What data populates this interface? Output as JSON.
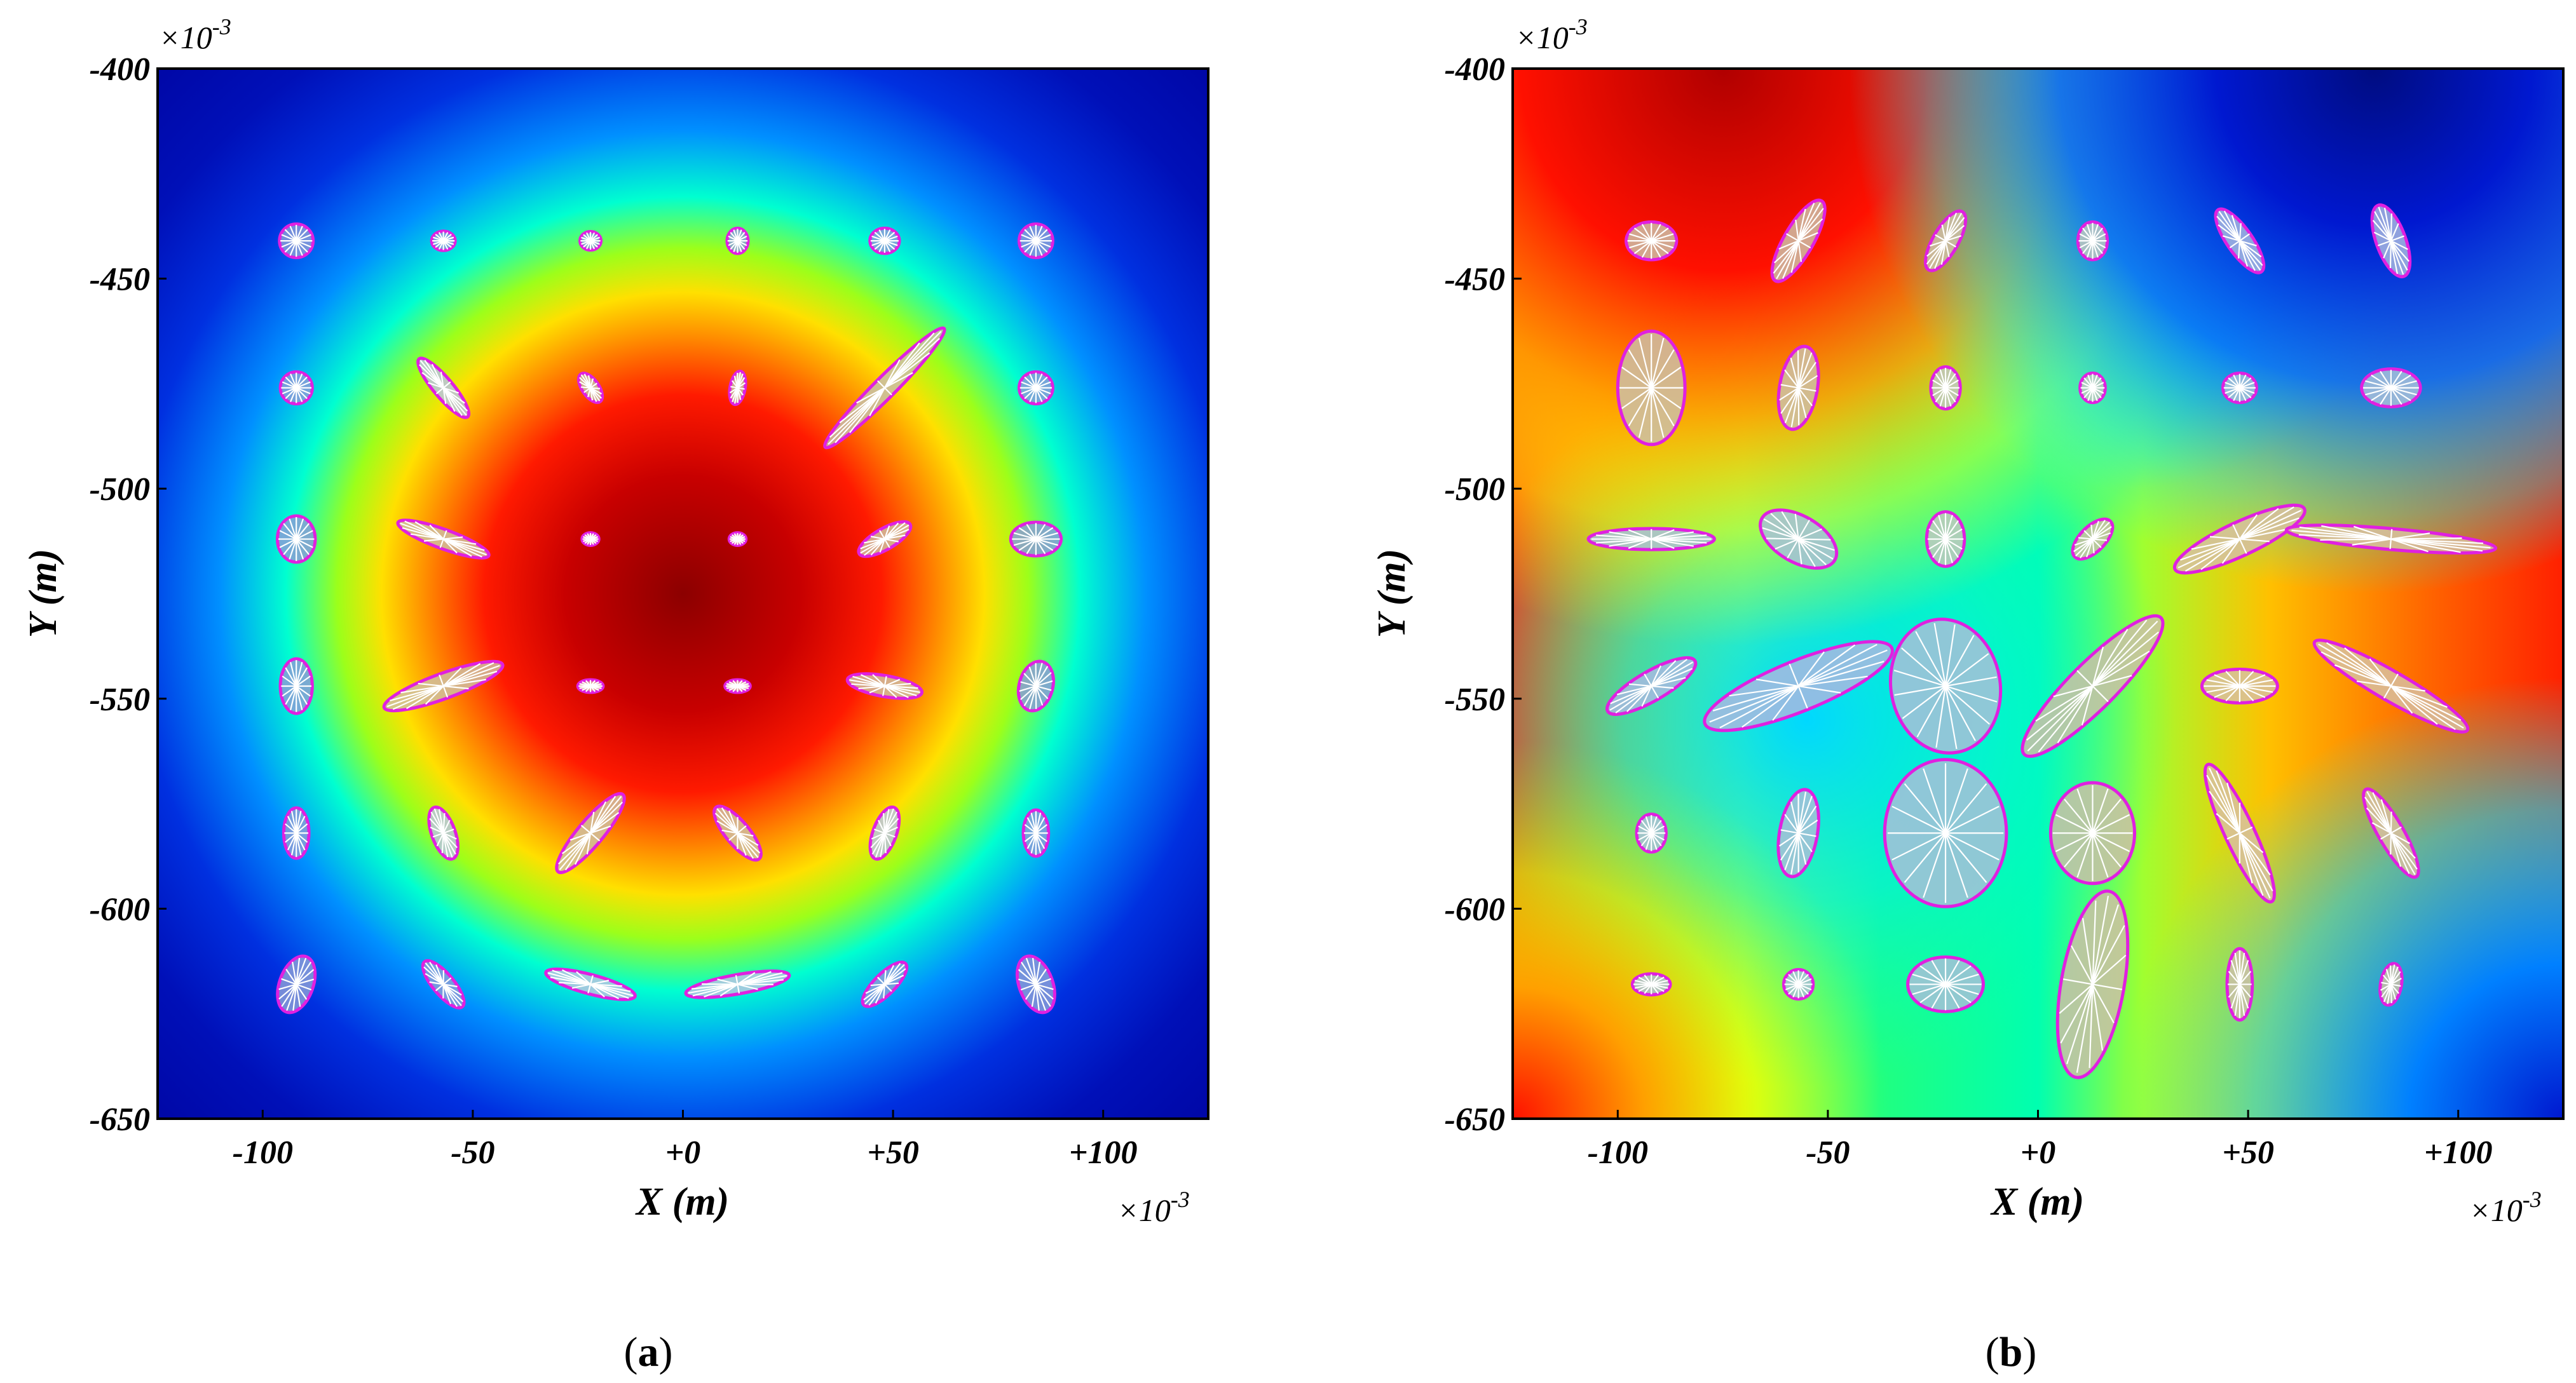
{
  "chart_data": [
    {
      "type": "heatmap",
      "panel_label": "a",
      "xlabel": "X (m)",
      "ylabel": "Y (m)",
      "multiplier": "×10",
      "multiplier_exp": "-3",
      "x_ticks": [
        "-100",
        "-50",
        "+0",
        "+50",
        "+100"
      ],
      "y_ticks": [
        "-400",
        "-450",
        "-500",
        "-550",
        "-600",
        "-650"
      ],
      "x_tick_values": [
        -100,
        -50,
        0,
        50,
        100
      ],
      "y_tick_values": [
        -400,
        -450,
        -500,
        -550,
        -600,
        -650
      ],
      "xlim": [
        -125,
        125
      ],
      "ylim": [
        -650,
        -400
      ],
      "field": {
        "pattern": "radial",
        "center": [
          0,
          -530
        ],
        "radius": 115
      },
      "ellipses": [
        {
          "x": -92,
          "y": -441,
          "rx": 4,
          "ry": 4,
          "angle": 0,
          "fill": "#8a9cd8"
        },
        {
          "x": -57,
          "y": -441,
          "rx": 2.8,
          "ry": 2.3,
          "angle": 0,
          "fill": "#8a9cd8"
        },
        {
          "x": -22,
          "y": -441,
          "rx": 2.5,
          "ry": 2.2,
          "angle": 0,
          "fill": "#8a9cd8"
        },
        {
          "x": 13,
          "y": -441,
          "rx": 2.5,
          "ry": 3,
          "angle": 0,
          "fill": "#8a9cd8"
        },
        {
          "x": 48,
          "y": -441,
          "rx": 3.5,
          "ry": 3,
          "angle": 0,
          "fill": "#8a9cd8"
        },
        {
          "x": 84,
          "y": -441,
          "rx": 4,
          "ry": 4,
          "angle": 0,
          "fill": "#8a9cd8"
        },
        {
          "x": -92,
          "y": -476,
          "rx": 3.8,
          "ry": 3.8,
          "angle": 0,
          "fill": "#8a9cd8"
        },
        {
          "x": -57,
          "y": -476,
          "rx": 9,
          "ry": 2.3,
          "angle": -50,
          "fill": "#b8c4e0"
        },
        {
          "x": -22,
          "y": -476,
          "rx": 4,
          "ry": 2,
          "angle": -55,
          "fill": "#c8c0a8"
        },
        {
          "x": 13,
          "y": -476,
          "rx": 4,
          "ry": 1.8,
          "angle": 80,
          "fill": "#c8c0a8"
        },
        {
          "x": 48,
          "y": -476,
          "rx": 20,
          "ry": 2.5,
          "angle": 45,
          "fill": "#c8c0a8"
        },
        {
          "x": 84,
          "y": -476,
          "rx": 4,
          "ry": 3.8,
          "angle": 0,
          "fill": "#8a9cd8"
        },
        {
          "x": -92,
          "y": -512,
          "rx": 4.5,
          "ry": 5.5,
          "angle": 0,
          "fill": "#8a9cd8"
        },
        {
          "x": -57,
          "y": -512,
          "rx": 11.5,
          "ry": 2.3,
          "angle": -20,
          "fill": "#d0c0a0"
        },
        {
          "x": -22,
          "y": -512,
          "rx": 2,
          "ry": 1.5,
          "angle": 0,
          "fill": "#e0b0b0"
        },
        {
          "x": 13,
          "y": -512,
          "rx": 2,
          "ry": 1.5,
          "angle": 0,
          "fill": "#e0b0b0"
        },
        {
          "x": 48,
          "y": -512,
          "rx": 7,
          "ry": 2.5,
          "angle": 30,
          "fill": "#d0c0a0"
        },
        {
          "x": 84,
          "y": -512,
          "rx": 6,
          "ry": 4,
          "angle": 0,
          "fill": "#8a9cd8"
        },
        {
          "x": -92,
          "y": -547,
          "rx": 3.8,
          "ry": 6.5,
          "angle": 0,
          "fill": "#8a9cd8"
        },
        {
          "x": -57,
          "y": -547,
          "rx": 15,
          "ry": 3,
          "angle": 20,
          "fill": "#d0c0a0"
        },
        {
          "x": -22,
          "y": -547,
          "rx": 3,
          "ry": 1.5,
          "angle": 0,
          "fill": "#e0b0b0"
        },
        {
          "x": 13,
          "y": -547,
          "rx": 3,
          "ry": 1.5,
          "angle": 0,
          "fill": "#e0b0b0"
        },
        {
          "x": 48,
          "y": -547,
          "rx": 9,
          "ry": 2.5,
          "angle": -10,
          "fill": "#d0c0a0"
        },
        {
          "x": 84,
          "y": -547,
          "rx": 4,
          "ry": 6,
          "angle": -15,
          "fill": "#8a9cd8"
        },
        {
          "x": -92,
          "y": -582,
          "rx": 3,
          "ry": 6,
          "angle": 0,
          "fill": "#8a9cd8"
        },
        {
          "x": -57,
          "y": -582,
          "rx": 2.8,
          "ry": 6.5,
          "angle": 20,
          "fill": "#b8c4e0"
        },
        {
          "x": -22,
          "y": -582,
          "rx": 12,
          "ry": 3,
          "angle": 50,
          "fill": "#d0c0a0"
        },
        {
          "x": 13,
          "y": -582,
          "rx": 8,
          "ry": 2.8,
          "angle": -50,
          "fill": "#d0c0a0"
        },
        {
          "x": 48,
          "y": -582,
          "rx": 2.8,
          "ry": 6.5,
          "angle": -20,
          "fill": "#b8c4e0"
        },
        {
          "x": 84,
          "y": -582,
          "rx": 3,
          "ry": 5.5,
          "angle": 0,
          "fill": "#8a9cd8"
        },
        {
          "x": -92,
          "y": -618,
          "rx": 4,
          "ry": 7,
          "angle": -20,
          "fill": "#8a9cd8"
        },
        {
          "x": -57,
          "y": -618,
          "rx": 7,
          "ry": 2.5,
          "angle": -50,
          "fill": "#8a9cd8"
        },
        {
          "x": -22,
          "y": -618,
          "rx": 11,
          "ry": 2.3,
          "angle": -15,
          "fill": "#b8c4e0"
        },
        {
          "x": 13,
          "y": -618,
          "rx": 12.5,
          "ry": 2.3,
          "angle": 10,
          "fill": "#b8c4e0"
        },
        {
          "x": 48,
          "y": -618,
          "rx": 7,
          "ry": 2.5,
          "angle": 45,
          "fill": "#8a9cd8"
        },
        {
          "x": 84,
          "y": -618,
          "rx": 4,
          "ry": 7,
          "angle": 20,
          "fill": "#8a9cd8"
        }
      ]
    },
    {
      "type": "heatmap",
      "panel_label": "b",
      "xlabel": "X (m)",
      "ylabel": "Y (m)",
      "multiplier": "×10",
      "multiplier_exp": "-3",
      "x_ticks": [
        "-100",
        "-50",
        "+0",
        "+50",
        "+100"
      ],
      "y_ticks": [
        "-400",
        "-450",
        "-500",
        "-550",
        "-600",
        "-650"
      ],
      "x_tick_values": [
        -100,
        -50,
        0,
        50,
        100
      ],
      "y_tick_values": [
        -400,
        -450,
        -500,
        -550,
        -600,
        -650
      ],
      "xlim": [
        -125,
        125
      ],
      "ylim": [
        -650,
        -400
      ],
      "field": {
        "pattern": "saddle"
      },
      "ellipses": [
        {
          "x": -92,
          "y": -441,
          "rx": 6,
          "ry": 4.5,
          "angle": 0,
          "fill": "#cdbfa6"
        },
        {
          "x": -57,
          "y": -441,
          "rx": 11,
          "ry": 3.5,
          "angle": 60,
          "fill": "#cdbfa6"
        },
        {
          "x": -22,
          "y": -441,
          "rx": 8,
          "ry": 3,
          "angle": 60,
          "fill": "#cdbfa6"
        },
        {
          "x": 13,
          "y": -441,
          "rx": 3.5,
          "ry": 4.5,
          "angle": 0,
          "fill": "#c0c8c0"
        },
        {
          "x": 48,
          "y": -441,
          "rx": 9,
          "ry": 3,
          "angle": -55,
          "fill": "#a8b8e0"
        },
        {
          "x": 84,
          "y": -441,
          "rx": 9,
          "ry": 3.5,
          "angle": -70,
          "fill": "#a8b8e0"
        },
        {
          "x": -92,
          "y": -476,
          "rx": 8,
          "ry": 13.5,
          "angle": 0,
          "fill": "#cdbfa6"
        },
        {
          "x": -57,
          "y": -476,
          "rx": 4.5,
          "ry": 10,
          "angle": -10,
          "fill": "#cdbfa6"
        },
        {
          "x": -22,
          "y": -476,
          "rx": 3.5,
          "ry": 5,
          "angle": 0,
          "fill": "#c0c8c0"
        },
        {
          "x": 13,
          "y": -476,
          "rx": 3,
          "ry": 3.5,
          "angle": 0,
          "fill": "#c0c8c0"
        },
        {
          "x": 48,
          "y": -476,
          "rx": 4,
          "ry": 3.5,
          "angle": 0,
          "fill": "#a8c0d8"
        },
        {
          "x": 84,
          "y": -476,
          "rx": 7,
          "ry": 4.5,
          "angle": 0,
          "fill": "#a8c0d8"
        },
        {
          "x": -92,
          "y": -512,
          "rx": 15,
          "ry": 2.5,
          "angle": 0,
          "fill": "#a8c0d8"
        },
        {
          "x": -57,
          "y": -512,
          "rx": 10,
          "ry": 5.5,
          "angle": -30,
          "fill": "#a8c0d8"
        },
        {
          "x": -22,
          "y": -512,
          "rx": 4.5,
          "ry": 6.5,
          "angle": 0,
          "fill": "#c0c8c0"
        },
        {
          "x": 13,
          "y": -512,
          "rx": 6,
          "ry": 3,
          "angle": 45,
          "fill": "#cdbfa6"
        },
        {
          "x": 48,
          "y": -512,
          "rx": 17,
          "ry": 4,
          "angle": 25,
          "fill": "#d8c0a0"
        },
        {
          "x": 84,
          "y": -512,
          "rx": 25,
          "ry": 2.5,
          "angle": -5,
          "fill": "#d8c0a0"
        },
        {
          "x": -92,
          "y": -547,
          "rx": 12,
          "ry": 3.5,
          "angle": 30,
          "fill": "#a8b8e0"
        },
        {
          "x": -57,
          "y": -547,
          "rx": 24,
          "ry": 6,
          "angle": 22,
          "fill": "#a8b8e0"
        },
        {
          "x": -22,
          "y": -547,
          "rx": 13,
          "ry": 16,
          "angle": 10,
          "fill": "#a8c0d8"
        },
        {
          "x": 13,
          "y": -547,
          "rx": 23,
          "ry": 5.5,
          "angle": 45,
          "fill": "#cdbfa6"
        },
        {
          "x": 48,
          "y": -547,
          "rx": 9,
          "ry": 4,
          "angle": 0,
          "fill": "#d8c0a0"
        },
        {
          "x": 84,
          "y": -547,
          "rx": 21,
          "ry": 3.5,
          "angle": -30,
          "fill": "#d8c0a0"
        },
        {
          "x": -92,
          "y": -582,
          "rx": 3.5,
          "ry": 4.5,
          "angle": 0,
          "fill": "#a8c0d8"
        },
        {
          "x": -57,
          "y": -582,
          "rx": 4.5,
          "ry": 10.5,
          "angle": -10,
          "fill": "#a8c0d8"
        },
        {
          "x": -22,
          "y": -582,
          "rx": 14.5,
          "ry": 17.5,
          "angle": 0,
          "fill": "#a8c0d8"
        },
        {
          "x": 13,
          "y": -582,
          "rx": 10,
          "ry": 12,
          "angle": 0,
          "fill": "#cdbfa6"
        },
        {
          "x": 48,
          "y": -582,
          "rx": 18,
          "ry": 3.5,
          "angle": -65,
          "fill": "#d8c0a0"
        },
        {
          "x": 84,
          "y": -582,
          "rx": 12,
          "ry": 3,
          "angle": -60,
          "fill": "#d8c0a0"
        },
        {
          "x": -92,
          "y": -618,
          "rx": 4.5,
          "ry": 2.5,
          "angle": 0,
          "fill": "#a8c0d8"
        },
        {
          "x": -57,
          "y": -618,
          "rx": 3.5,
          "ry": 3.5,
          "angle": 0,
          "fill": "#a8c0d8"
        },
        {
          "x": -22,
          "y": -618,
          "rx": 9,
          "ry": 6.5,
          "angle": 0,
          "fill": "#a8c0d8"
        },
        {
          "x": 13,
          "y": -618,
          "rx": 7.5,
          "ry": 22.5,
          "angle": -10,
          "fill": "#cdbfa6"
        },
        {
          "x": 48,
          "y": -618,
          "rx": 3,
          "ry": 8.5,
          "angle": 0,
          "fill": "#cdbfa6"
        },
        {
          "x": 84,
          "y": -618,
          "rx": 2.5,
          "ry": 5,
          "angle": -10,
          "fill": "#cdbfa6"
        }
      ]
    }
  ],
  "colors": {
    "ellipse_stroke": "#e020e0",
    "cross_stroke": "#ffffff",
    "axis": "#000000"
  }
}
